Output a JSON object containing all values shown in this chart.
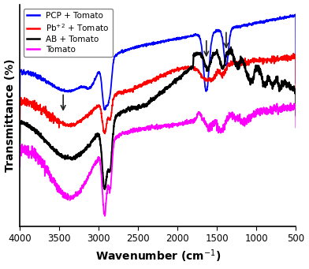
{
  "xlabel": "Wavenumber (cm$^{-1}$)",
  "ylabel": "Transmittance (%)",
  "xlim": [
    4000,
    500
  ],
  "legend_entries": [
    "PCP + Tomato",
    "Pb$^{+2}$ + Tomato",
    "AB + Tomato",
    "Tomato"
  ],
  "colors": [
    "blue",
    "red",
    "black",
    "magenta"
  ],
  "xticks": [
    4000,
    3500,
    3000,
    2500,
    2000,
    1500,
    1000,
    500
  ]
}
